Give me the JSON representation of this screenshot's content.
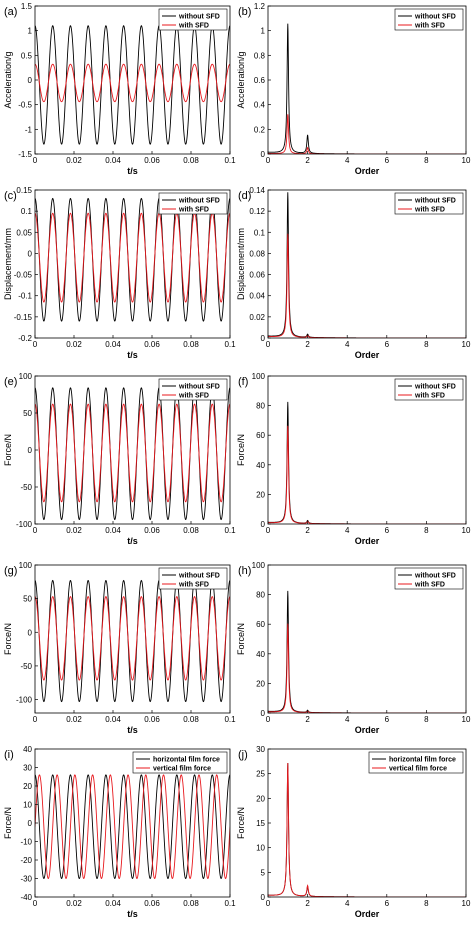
{
  "colors": {
    "without": "#000000",
    "with": "#e8191e",
    "axis": "#000000",
    "background": "#ffffff"
  },
  "chart_data": [
    {
      "panel": "(a)",
      "type": "line",
      "xlabel": "t/s",
      "ylabel": "Acceleration/g",
      "xlim": [
        0,
        0.1
      ],
      "ylim": [
        -1.5,
        1.5
      ],
      "xticks": [
        "0",
        "0.02",
        "0.04",
        "0.06",
        "0.08",
        "0.1"
      ],
      "yticks": [
        "-1.5",
        "-1",
        "-0.5",
        "0",
        "0.5",
        "1",
        "1.5"
      ],
      "legend": "top-right",
      "series": [
        {
          "name": "without SFD",
          "kind": "sine",
          "frequency_hz": 110,
          "center": -0.1,
          "amplitude": 1.2,
          "phase": 1.5708
        },
        {
          "name": "with SFD",
          "kind": "sine",
          "frequency_hz": 110,
          "center": -0.06,
          "amplitude": 0.38,
          "phase": 1.5708
        }
      ]
    },
    {
      "panel": "(b)",
      "type": "line",
      "xlabel": "Order",
      "ylabel": "Acceleration/g",
      "xlim": [
        0,
        10
      ],
      "ylim": [
        0,
        1.2
      ],
      "xticks": [
        "0",
        "2",
        "4",
        "6",
        "8",
        "10"
      ],
      "yticks": [
        "0",
        "0.2",
        "0.4",
        "0.6",
        "0.8",
        "1",
        "1.2"
      ],
      "legend": "top-right",
      "series": [
        {
          "name": "without SFD",
          "kind": "spectrum",
          "peaks": [
            [
              1,
              1.05
            ],
            [
              2,
              0.15
            ]
          ],
          "base": 0.0
        },
        {
          "name": "with SFD",
          "kind": "spectrum",
          "peaks": [
            [
              1,
              0.32
            ],
            [
              2,
              0.05
            ]
          ],
          "base": 0.0
        }
      ]
    },
    {
      "panel": "(c)",
      "type": "line",
      "xlabel": "t/s",
      "ylabel": "Displacement/mm",
      "xlim": [
        0,
        0.1
      ],
      "ylim": [
        -0.2,
        0.15
      ],
      "xticks": [
        "0",
        "0.02",
        "0.04",
        "0.06",
        "0.08",
        "0.1"
      ],
      "yticks": [
        "-0.2",
        "-0.15",
        "-0.1",
        "-0.05",
        "0",
        "0.05",
        "0.1",
        "0.15"
      ],
      "legend": "top-right",
      "series": [
        {
          "name": "without SFD",
          "kind": "sine",
          "frequency_hz": 110,
          "center": -0.015,
          "amplitude": 0.145,
          "phase": 1.5708
        },
        {
          "name": "with SFD",
          "kind": "sine",
          "frequency_hz": 110,
          "center": -0.01,
          "amplitude": 0.105,
          "phase": 1.5708
        }
      ]
    },
    {
      "panel": "(d)",
      "type": "line",
      "xlabel": "Order",
      "ylabel": "Displacement/mm",
      "xlim": [
        0,
        10
      ],
      "ylim": [
        0,
        0.14
      ],
      "xticks": [
        "0",
        "2",
        "4",
        "6",
        "8",
        "10"
      ],
      "yticks": [
        "0",
        "0.02",
        "0.04",
        "0.06",
        "0.08",
        "0.1",
        "0.12",
        "0.14"
      ],
      "legend": "top-right",
      "series": [
        {
          "name": "without SFD",
          "kind": "spectrum",
          "peaks": [
            [
              1,
              0.137
            ],
            [
              2,
              0.003
            ]
          ],
          "base": 0.0
        },
        {
          "name": "with SFD",
          "kind": "spectrum",
          "peaks": [
            [
              1,
              0.098
            ],
            [
              2,
              0.002
            ]
          ],
          "base": 0.0
        }
      ]
    },
    {
      "panel": "(e)",
      "type": "line",
      "xlabel": "t/s",
      "ylabel": "Force/N",
      "xlim": [
        0,
        0.1
      ],
      "ylim": [
        -100,
        100
      ],
      "xticks": [
        "0",
        "0.02",
        "0.04",
        "0.06",
        "0.08",
        "0.1"
      ],
      "yticks": [
        "-100",
        "-50",
        "0",
        "50",
        "100"
      ],
      "legend": "top-right",
      "series": [
        {
          "name": "without SFD",
          "kind": "sine",
          "frequency_hz": 110,
          "center": -5,
          "amplitude": 89,
          "phase": 1.5708
        },
        {
          "name": "with SFD",
          "kind": "sine",
          "frequency_hz": 110,
          "center": -4,
          "amplitude": 66,
          "phase": 1.5708
        }
      ]
    },
    {
      "panel": "(f)",
      "type": "line",
      "xlabel": "Order",
      "ylabel": "Force/N",
      "xlim": [
        0,
        10
      ],
      "ylim": [
        0,
        100
      ],
      "xticks": [
        "0",
        "2",
        "4",
        "6",
        "8",
        "10"
      ],
      "yticks": [
        "0",
        "20",
        "40",
        "60",
        "80",
        "100"
      ],
      "legend": "top-right",
      "series": [
        {
          "name": "without SFD",
          "kind": "spectrum",
          "peaks": [
            [
              1,
              82
            ],
            [
              2,
              2
            ]
          ],
          "base": 0.0
        },
        {
          "name": "with SFD",
          "kind": "spectrum",
          "peaks": [
            [
              1,
              66
            ],
            [
              2,
              1.5
            ]
          ],
          "base": 0.0
        }
      ]
    },
    {
      "panel": "(g)",
      "type": "line",
      "xlabel": "t/s",
      "ylabel": "Force/N",
      "xlim": [
        0,
        0.1
      ],
      "ylim": [
        -120,
        100
      ],
      "xticks": [
        "0",
        "0.02",
        "0.04",
        "0.06",
        "0.08",
        "0.1"
      ],
      "yticks": [
        "-100",
        "-50",
        "0",
        "50",
        "100"
      ],
      "legend": "top-right",
      "series": [
        {
          "name": "without SFD",
          "kind": "sine",
          "frequency_hz": 110,
          "center": -13,
          "amplitude": 90,
          "phase": 1.5708
        },
        {
          "name": "with SFD",
          "kind": "sine",
          "frequency_hz": 110,
          "center": -9,
          "amplitude": 62,
          "phase": 1.5708
        }
      ]
    },
    {
      "panel": "(h)",
      "type": "line",
      "xlabel": "Order",
      "ylabel": "Force/N",
      "xlim": [
        0,
        10
      ],
      "ylim": [
        0,
        100
      ],
      "xticks": [
        "0",
        "2",
        "4",
        "6",
        "8",
        "10"
      ],
      "yticks": [
        "0",
        "20",
        "40",
        "60",
        "80",
        "100"
      ],
      "legend": "top-right",
      "series": [
        {
          "name": "without SFD",
          "kind": "spectrum",
          "peaks": [
            [
              1,
              82
            ],
            [
              2,
              1.5
            ]
          ],
          "base": 0.0
        },
        {
          "name": "with SFD",
          "kind": "spectrum",
          "peaks": [
            [
              1,
              60
            ],
            [
              2,
              1
            ]
          ],
          "base": 0.0
        }
      ]
    },
    {
      "panel": "(i)",
      "type": "line",
      "xlabel": "t/s",
      "ylabel": "Force/N",
      "xlim": [
        0,
        0.1
      ],
      "ylim": [
        -40,
        40
      ],
      "xticks": [
        "0",
        "0.02",
        "0.04",
        "0.06",
        "0.08",
        "0.1"
      ],
      "yticks": [
        "-40",
        "-30",
        "-20",
        "-10",
        "0",
        "10",
        "20",
        "30",
        "40"
      ],
      "legend": "top-right",
      "series": [
        {
          "name": "horizontal film force",
          "kind": "sine",
          "frequency_hz": 110,
          "center": -2,
          "amplitude": 28,
          "phase": 1.5708
        },
        {
          "name": "vertical film force",
          "kind": "sine",
          "frequency_hz": 110,
          "center": -2,
          "amplitude": 28,
          "phase": 0
        }
      ]
    },
    {
      "panel": "(j)",
      "type": "line",
      "xlabel": "Order",
      "ylabel": "Force/N",
      "xlim": [
        0,
        10
      ],
      "ylim": [
        0,
        30
      ],
      "xticks": [
        "0",
        "2",
        "4",
        "6",
        "8",
        "10"
      ],
      "yticks": [
        "0",
        "5",
        "10",
        "15",
        "20",
        "25",
        "30"
      ],
      "legend": "top-right",
      "series": [
        {
          "name": "horizontal film force",
          "kind": "spectrum",
          "peaks": [
            [
              1,
              27
            ],
            [
              2,
              2
            ]
          ],
          "base": 0.0
        },
        {
          "name": "vertical film force",
          "kind": "spectrum",
          "peaks": [
            [
              1,
              27
            ],
            [
              2,
              2.2
            ]
          ],
          "base": 0.0
        }
      ]
    }
  ]
}
